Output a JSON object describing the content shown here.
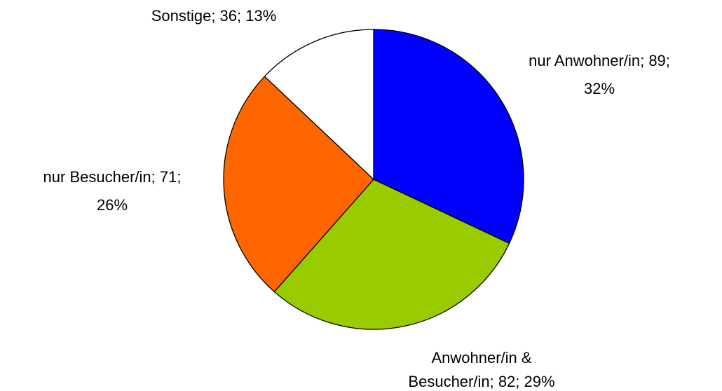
{
  "chart_data": {
    "type": "pie",
    "categories": [
      "nur Anwohner/in",
      "Anwohner/in & Besucher/in",
      "nur Besucher/in",
      "Sonstige"
    ],
    "values": [
      89,
      82,
      71,
      36
    ],
    "value_labels": [
      [
        "nur Anwohner/in; 89;",
        "32%"
      ],
      [
        "Anwohner/in &",
        "Besucher/in; 82; 29%"
      ],
      [
        "nur Besucher/in; 71;",
        "26%"
      ],
      [
        "Sonstige; 36; 13%"
      ]
    ],
    "colors": [
      "#0000ff",
      "#99cc00",
      "#ff6600",
      "#ffffff"
    ]
  }
}
